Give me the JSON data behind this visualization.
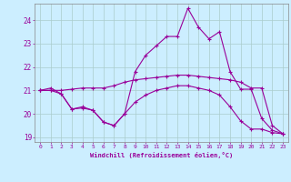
{
  "xlabel": "Windchill (Refroidissement éolien,°C)",
  "xlim": [
    -0.5,
    23.5
  ],
  "ylim": [
    18.8,
    24.7
  ],
  "yticks": [
    19,
    20,
    21,
    22,
    23,
    24
  ],
  "xticks": [
    0,
    1,
    2,
    3,
    4,
    5,
    6,
    7,
    8,
    9,
    10,
    11,
    12,
    13,
    14,
    15,
    16,
    17,
    18,
    19,
    20,
    21,
    22,
    23
  ],
  "bg_color": "#cceeff",
  "grid_color": "#aacccc",
  "line_color": "#990099",
  "line1": [
    21.0,
    21.1,
    20.85,
    20.2,
    20.3,
    20.15,
    19.65,
    19.5,
    20.0,
    21.8,
    22.5,
    22.9,
    23.3,
    23.3,
    24.5,
    23.7,
    23.2,
    23.5,
    21.8,
    21.05,
    21.05,
    19.8,
    19.3,
    19.15
  ],
  "line2": [
    21.0,
    21.0,
    21.0,
    21.05,
    21.1,
    21.1,
    21.1,
    21.2,
    21.35,
    21.45,
    21.5,
    21.55,
    21.6,
    21.65,
    21.65,
    21.6,
    21.55,
    21.5,
    21.45,
    21.35,
    21.1,
    21.1,
    19.5,
    19.15
  ],
  "line3": [
    21.0,
    21.0,
    20.85,
    20.2,
    20.25,
    20.15,
    19.65,
    19.5,
    20.0,
    20.5,
    20.8,
    21.0,
    21.1,
    21.2,
    21.2,
    21.1,
    21.0,
    20.8,
    20.3,
    19.7,
    19.35,
    19.35,
    19.2,
    19.15
  ]
}
